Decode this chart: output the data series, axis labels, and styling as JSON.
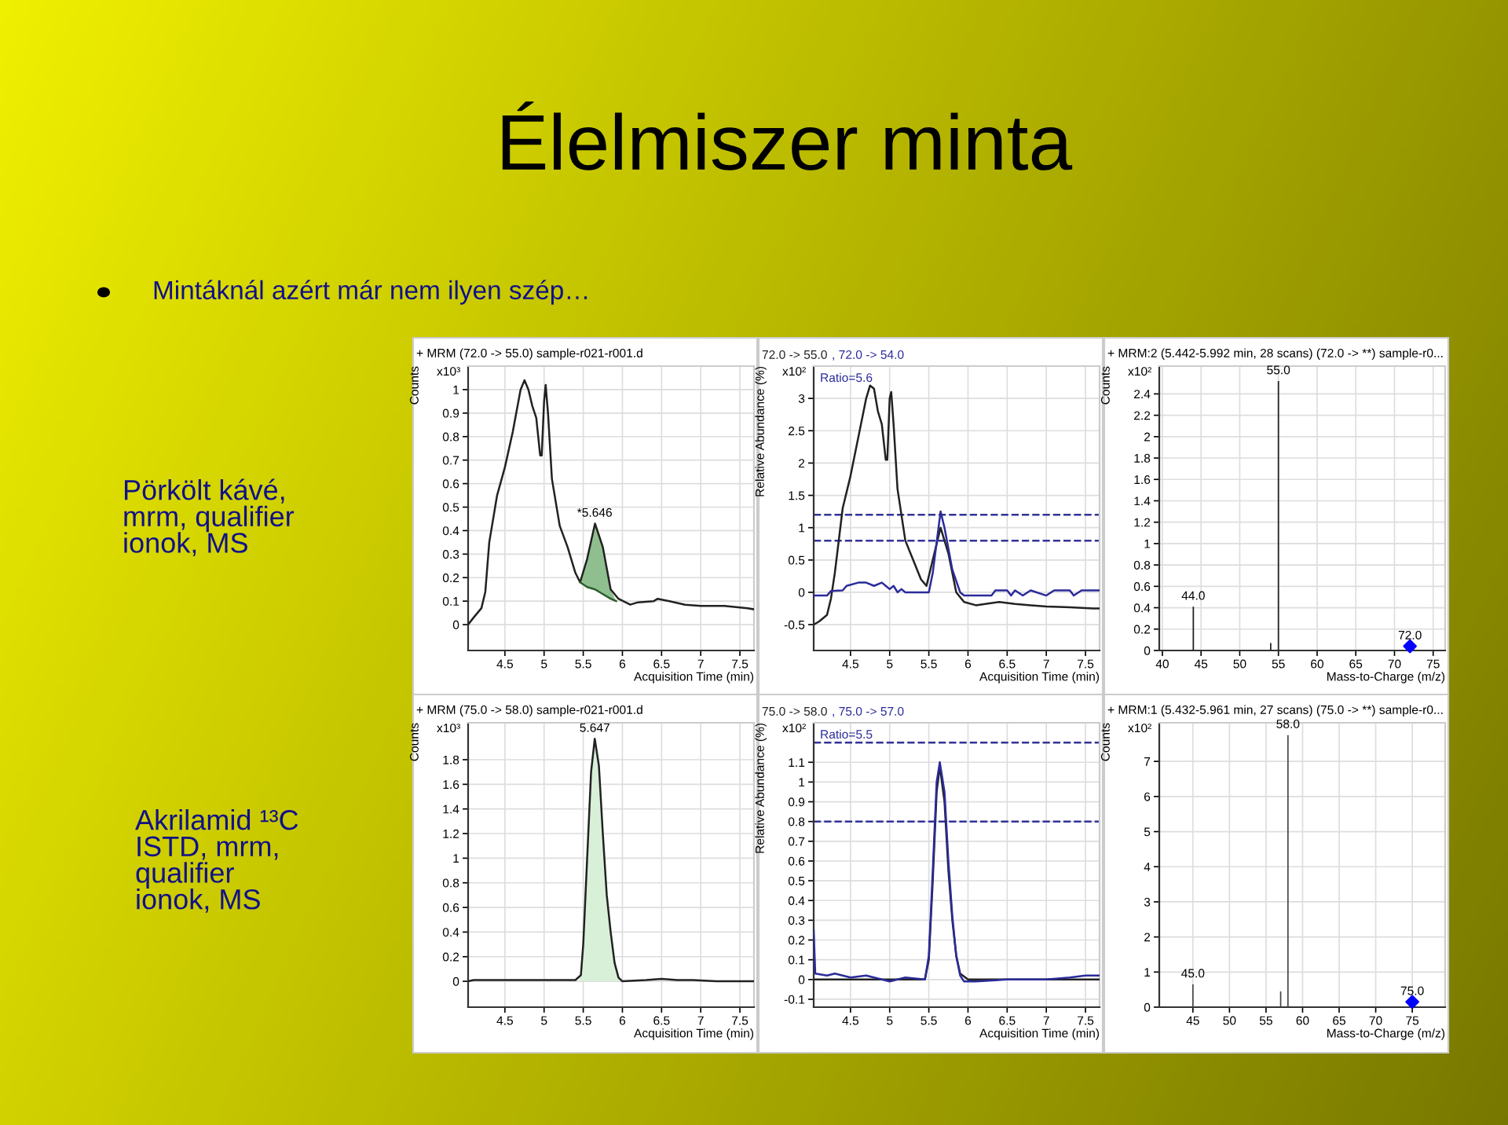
{
  "chart_data": [
    {
      "type": "other",
      "title": "Élelmiszer minta",
      "subtitle": "Mintáknál azért már nem ilyen szép…",
      "annotations": [
        "Pörkölt kávé,\nmrm, qualifier\nionok, MS",
        "Akrilamid ¹³C\nISTD, mrm,\nqualifier\nionok, MS"
      ]
    },
    {
      "type": "line",
      "title": "+ MRM (72.0 -> 55.0) sample-r021-r001.d",
      "xlabel": "Acquisition Time (min)",
      "ylabel": "Counts",
      "xlim": [
        4.03,
        7.68
      ],
      "ylim": [
        -0.11,
        1.1
      ],
      "xticks": [
        4.5,
        5,
        5.5,
        6,
        6.5,
        7,
        7.5
      ],
      "yticks": [
        0,
        0.1,
        0.2,
        0.3,
        0.4,
        0.5,
        0.6,
        0.7,
        0.8,
        0.9,
        1
      ],
      "grid": true,
      "legend": false,
      "annotations": [
        "x10³",
        {
          "text": "*5.646",
          "x": 5.646,
          "y": 0.43
        }
      ],
      "series": [
        {
          "type": "line",
          "color": "#222222",
          "x": [
            4.03,
            4.1,
            4.2,
            4.25,
            4.3,
            4.4,
            4.5,
            4.6,
            4.7,
            4.75,
            4.8,
            4.85,
            4.9,
            4.95,
            4.97,
            5.0,
            5.02,
            5.05,
            5.1,
            5.2,
            5.3,
            5.4,
            5.46,
            5.55,
            5.65,
            5.75,
            5.85,
            5.95,
            6.1,
            6.2,
            6.4,
            6.45,
            6.6,
            6.8,
            7.0,
            7.3,
            7.6,
            7.68
          ],
          "values": [
            0.0,
            0.03,
            0.07,
            0.14,
            0.35,
            0.55,
            0.67,
            0.82,
            1.0,
            1.04,
            1.0,
            0.93,
            0.88,
            0.72,
            0.72,
            0.95,
            1.02,
            0.9,
            0.62,
            0.42,
            0.33,
            0.22,
            0.18,
            0.28,
            0.43,
            0.33,
            0.15,
            0.11,
            0.085,
            0.095,
            0.1,
            0.11,
            0.1,
            0.085,
            0.08,
            0.08,
            0.07,
            0.065
          ]
        },
        {
          "type": "area",
          "color": "#8fbf8f",
          "x": [
            5.46,
            5.55,
            5.65,
            5.75,
            5.85,
            5.92
          ],
          "values": [
            0.18,
            0.28,
            0.43,
            0.33,
            0.15,
            0.1
          ]
        },
        {
          "type": "line",
          "color": "#2e5e2e",
          "x": [
            5.46,
            5.55,
            5.65,
            5.75,
            5.85,
            5.92
          ],
          "values": [
            0.18,
            0.16,
            0.15,
            0.13,
            0.11,
            0.1
          ]
        }
      ]
    },
    {
      "type": "line",
      "ylabel": "Relative Abundance (%)",
      "xlabel": "Acquisition Time (min)",
      "xlim": [
        4.03,
        7.68
      ],
      "ylim": [
        -0.9,
        3.5
      ],
      "xticks": [
        4.5,
        5,
        5.5,
        6,
        6.5,
        7,
        7.5
      ],
      "yticks": [
        -0.5,
        0,
        0.5,
        1,
        1.5,
        2,
        2.5,
        3
      ],
      "grid": true,
      "legend": "top",
      "annotations": [
        "x10²",
        "Ratio=5.6"
      ],
      "ref_lines": [
        {
          "axis": "y",
          "value": 1.2,
          "color": "#333399",
          "line_style": "dashed"
        },
        {
          "axis": "y",
          "value": 0.8,
          "color": "#333399",
          "line_style": "dashed"
        }
      ],
      "series": [
        {
          "name": "72.0 -> 55.0",
          "type": "line",
          "color": "#222222",
          "x": [
            4.03,
            4.1,
            4.2,
            4.25,
            4.3,
            4.4,
            4.5,
            4.6,
            4.7,
            4.75,
            4.8,
            4.85,
            4.9,
            4.95,
            4.97,
            5.0,
            5.02,
            5.05,
            5.1,
            5.2,
            5.3,
            5.4,
            5.47,
            5.55,
            5.65,
            5.75,
            5.85,
            5.95,
            6.1,
            6.4,
            6.6,
            6.8,
            7.0,
            7.3,
            7.6,
            7.68
          ],
          "values": [
            -0.5,
            -0.45,
            -0.35,
            -0.1,
            0.3,
            1.3,
            1.8,
            2.4,
            3.0,
            3.2,
            3.15,
            2.8,
            2.6,
            2.05,
            2.05,
            3.0,
            3.1,
            2.6,
            1.6,
            0.8,
            0.5,
            0.2,
            0.1,
            0.5,
            1.0,
            0.6,
            0.0,
            -0.15,
            -0.2,
            -0.15,
            -0.18,
            -0.2,
            -0.22,
            -0.23,
            -0.25,
            -0.25
          ]
        },
        {
          "name": ", 72.0 -> 54.0",
          "type": "line",
          "color": "#2b2b9a",
          "x": [
            4.03,
            4.2,
            4.25,
            4.4,
            4.45,
            4.6,
            4.7,
            4.8,
            4.9,
            4.95,
            5.0,
            5.05,
            5.1,
            5.15,
            5.2,
            5.5,
            5.55,
            5.65,
            5.7,
            5.8,
            5.9,
            5.95,
            6.3,
            6.35,
            6.5,
            6.55,
            6.6,
            6.7,
            6.8,
            7.0,
            7.1,
            7.3,
            7.35,
            7.45,
            7.6,
            7.68
          ],
          "values": [
            -0.05,
            -0.05,
            0.02,
            0.03,
            0.1,
            0.15,
            0.15,
            0.1,
            0.15,
            0.1,
            0.05,
            0.1,
            0.0,
            0.05,
            0.0,
            0.0,
            0.3,
            1.25,
            1.0,
            0.35,
            0.0,
            -0.05,
            -0.05,
            0.03,
            0.03,
            -0.05,
            0.03,
            -0.05,
            0.03,
            -0.05,
            0.03,
            0.03,
            -0.05,
            0.03,
            0.03,
            0.03
          ]
        }
      ]
    },
    {
      "type": "bar",
      "title": "+ MRM:2 (5.442-5.992 min, 28 scans) (72.0 -> **) sample-r0...",
      "xlabel": "Mass-to-Charge (m/z)",
      "ylabel": "Counts",
      "xlim": [
        39.6,
        76.55
      ],
      "ylim": [
        0,
        2.66
      ],
      "xticks": [
        40,
        45,
        50,
        55,
        60,
        65,
        70,
        75
      ],
      "yticks": [
        0,
        0.2,
        0.4,
        0.6,
        0.8,
        1,
        1.2,
        1.4,
        1.6,
        1.8,
        2,
        2.2,
        2.4
      ],
      "grid": true,
      "legend": false,
      "annotations": [
        "x10²",
        {
          "text": "44.0",
          "x": 44,
          "y": 0.41
        },
        {
          "text": "55.0",
          "x": 55,
          "y": 2.52
        },
        {
          "text": "72.0",
          "x": 72,
          "y": 0.04
        }
      ],
      "series": [
        {
          "type": "bar",
          "color": "#222222",
          "x": [
            44,
            54,
            55
          ],
          "values": [
            0.41,
            0.07,
            2.52
          ]
        },
        {
          "type": "scatter",
          "color": "#0000ff",
          "marker": "diamond",
          "x": [
            72
          ],
          "values": [
            0.04
          ]
        }
      ]
    },
    {
      "type": "line",
      "title": "+ MRM (75.0 -> 58.0) sample-r021-r001.d",
      "xlabel": "Acquisition Time (min)",
      "ylabel": "Counts",
      "xlim": [
        4.03,
        7.68
      ],
      "ylim": [
        -0.21,
        2.1
      ],
      "xticks": [
        4.5,
        5,
        5.5,
        6,
        6.5,
        7,
        7.5
      ],
      "yticks": [
        0,
        0.2,
        0.4,
        0.6,
        0.8,
        1,
        1.2,
        1.4,
        1.6,
        1.8
      ],
      "grid": true,
      "legend": false,
      "annotations": [
        "x10³",
        {
          "text": "5.647",
          "x": 5.647,
          "y": 1.97
        }
      ],
      "series": [
        {
          "type": "line",
          "color": "#222222",
          "x": [
            4.03,
            4.1,
            5.0,
            5.4,
            5.47,
            5.5,
            5.55,
            5.6,
            5.647,
            5.7,
            5.75,
            5.8,
            5.85,
            5.9,
            5.95,
            6.0,
            6.3,
            6.5,
            6.7,
            6.9,
            7.2,
            7.68
          ],
          "values": [
            0.0,
            0.01,
            0.01,
            0.01,
            0.05,
            0.3,
            1.0,
            1.7,
            1.97,
            1.75,
            1.2,
            0.7,
            0.4,
            0.15,
            0.03,
            0.0,
            0.01,
            0.02,
            0.01,
            0.01,
            0.0,
            0.0
          ]
        },
        {
          "type": "area",
          "color": "#d8f0d8",
          "x": [
            5.45,
            5.5,
            5.55,
            5.6,
            5.647,
            5.7,
            5.75,
            5.8,
            5.85,
            5.9,
            5.95,
            6.0
          ],
          "values": [
            0.01,
            0.3,
            1.0,
            1.7,
            1.97,
            1.75,
            1.2,
            0.7,
            0.4,
            0.15,
            0.03,
            0.0
          ]
        }
      ]
    },
    {
      "type": "line",
      "ylabel": "Relative Abundance (%)",
      "xlabel": "Acquisition Time (min)",
      "xlim": [
        4.03,
        7.68
      ],
      "ylim": [
        -0.14,
        1.3
      ],
      "xticks": [
        4.5,
        5,
        5.5,
        6,
        6.5,
        7,
        7.5
      ],
      "yticks": [
        -0.1,
        0,
        0.1,
        0.2,
        0.3,
        0.4,
        0.5,
        0.6,
        0.7,
        0.8,
        0.9,
        1,
        1.1
      ],
      "grid": true,
      "legend": "top",
      "annotations": [
        "x10²",
        "Ratio=5.5"
      ],
      "ref_lines": [
        {
          "axis": "y",
          "value": 1.2,
          "color": "#333399",
          "line_style": "dashed"
        },
        {
          "axis": "y",
          "value": 0.8,
          "color": "#333399",
          "line_style": "dashed"
        }
      ],
      "series": [
        {
          "name": "75.0 -> 58.0",
          "type": "line",
          "color": "#222222",
          "x": [
            4.03,
            4.5,
            5.0,
            5.45,
            5.5,
            5.55,
            5.6,
            5.64,
            5.7,
            5.75,
            5.8,
            5.85,
            5.9,
            6.0,
            7.68
          ],
          "values": [
            0.0,
            0.0,
            0.0,
            0.0,
            0.1,
            0.5,
            0.95,
            1.08,
            0.9,
            0.55,
            0.3,
            0.12,
            0.03,
            0.0,
            0.0
          ]
        },
        {
          "name": ", 75.0 -> 57.0",
          "type": "line",
          "color": "#2b2b9a",
          "x": [
            4.03,
            4.05,
            4.2,
            4.3,
            4.5,
            4.7,
            4.9,
            5.0,
            5.2,
            5.45,
            5.5,
            5.55,
            5.6,
            5.64,
            5.7,
            5.75,
            5.8,
            5.85,
            5.9,
            5.95,
            6.1,
            6.5,
            7.0,
            7.3,
            7.5,
            7.68
          ],
          "values": [
            0.25,
            0.03,
            0.02,
            0.03,
            0.01,
            0.02,
            0.0,
            -0.01,
            0.01,
            0.0,
            0.12,
            0.55,
            1.0,
            1.1,
            0.95,
            0.6,
            0.32,
            0.12,
            0.02,
            -0.01,
            -0.01,
            0.0,
            0.0,
            0.01,
            0.02,
            0.02
          ]
        }
      ]
    },
    {
      "type": "bar",
      "title": "+ MRM:1 (5.432-5.961 min, 27 scans) (75.0 -> **) sample-r0...",
      "xlabel": "Mass-to-Charge (m/z)",
      "ylabel": "Counts",
      "xlim": [
        40.4,
        79.5
      ],
      "ylim": [
        0,
        8.1
      ],
      "xticks": [
        45,
        50,
        55,
        60,
        65,
        70,
        75
      ],
      "yticks": [
        0,
        1,
        2,
        3,
        4,
        5,
        6,
        7
      ],
      "grid": true,
      "legend": false,
      "annotations": [
        "x10²",
        {
          "text": "45.0",
          "x": 45,
          "y": 0.65
        },
        {
          "text": "58.0",
          "x": 58,
          "y": 7.75
        },
        {
          "text": "75.0",
          "x": 75,
          "y": 0.15
        }
      ],
      "series": [
        {
          "type": "bar",
          "color": "#444444",
          "x": [
            45,
            57,
            58
          ],
          "values": [
            0.65,
            0.45,
            7.75
          ]
        },
        {
          "type": "scatter",
          "color": "#0000ff",
          "marker": "diamond",
          "x": [
            75
          ],
          "values": [
            0.15
          ]
        }
      ]
    }
  ]
}
